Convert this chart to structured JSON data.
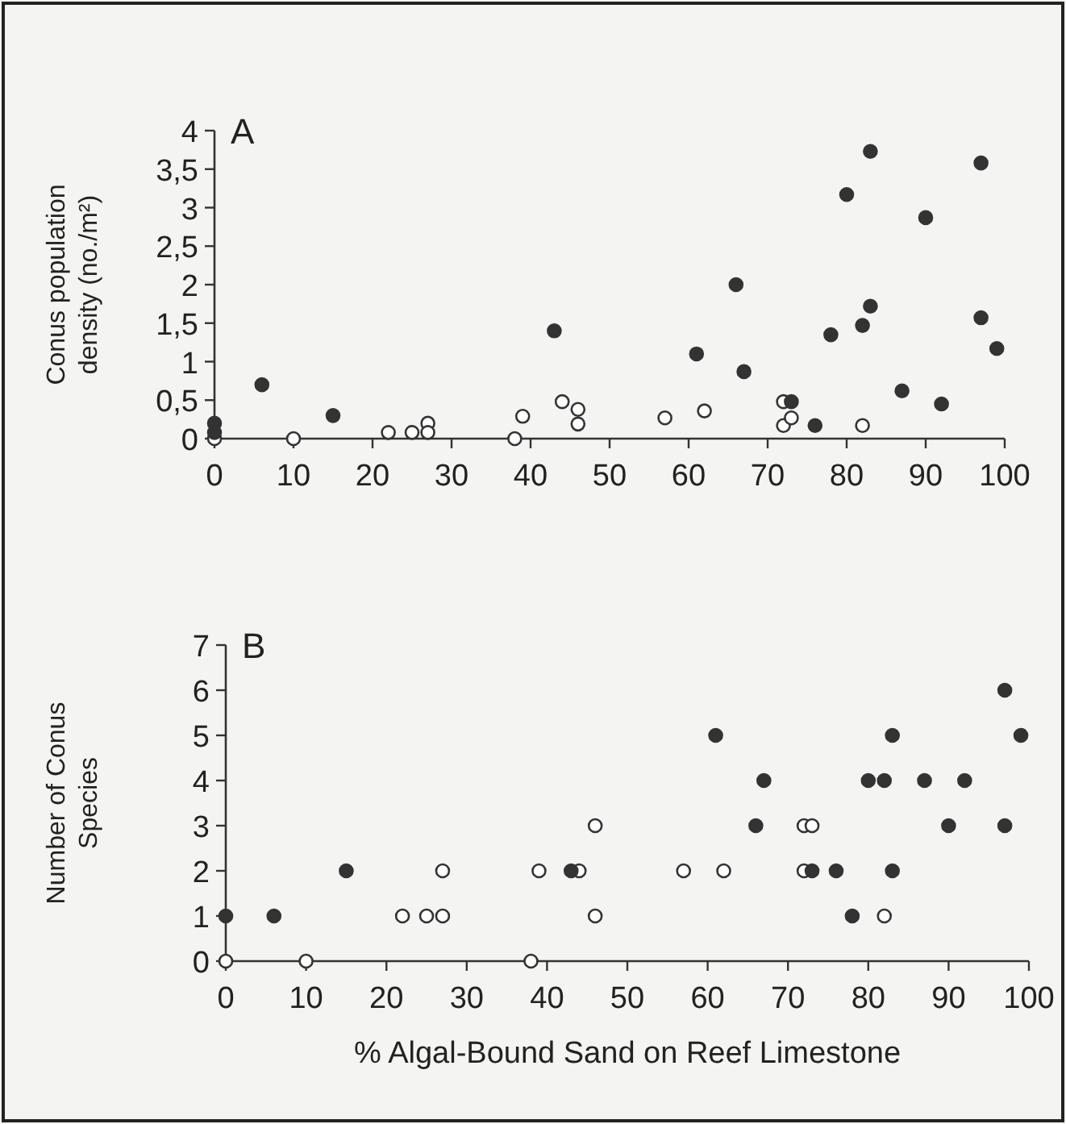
{
  "chart_data": [
    {
      "type": "scatter",
      "title": "A",
      "ylabel": "Conus population\ndensity (no./m²)",
      "xlim": [
        0,
        100
      ],
      "xticks": [
        0,
        10,
        20,
        30,
        40,
        50,
        60,
        70,
        80,
        90,
        100
      ],
      "ylim": [
        0,
        4
      ],
      "yticks": [
        0,
        {
          "value": 0.5,
          "label": "0,5"
        },
        1,
        {
          "value": 1.5,
          "label": "1,5"
        },
        2,
        {
          "value": 2.5,
          "label": "2,5"
        },
        3,
        {
          "value": 3.5,
          "label": "3,5"
        },
        4
      ],
      "marker": "circle",
      "grid": false,
      "series": [
        {
          "color": "#ffffff",
          "x": [
            0,
            10,
            22,
            25,
            27,
            27,
            38,
            39,
            44,
            46,
            46,
            57,
            62,
            72,
            72,
            73,
            82
          ],
          "values": [
            0,
            0,
            0.08,
            0.08,
            0.2,
            0.08,
            0,
            0.29,
            0.48,
            0.38,
            0.19,
            0.27,
            0.36,
            0.48,
            0.17,
            0.27,
            0.17
          ]
        },
        {
          "color": "#333333",
          "x": [
            0,
            0,
            6,
            15,
            43,
            61,
            66,
            67,
            73,
            76,
            78,
            80,
            82,
            83,
            83,
            87,
            90,
            92,
            97,
            97,
            99
          ],
          "values": [
            0.2,
            0.08,
            0.7,
            0.3,
            1.4,
            1.1,
            2,
            0.87,
            0.48,
            0.17,
            1.35,
            3.17,
            1.47,
            3.73,
            1.72,
            0.62,
            2.87,
            0.45,
            3.58,
            1.57,
            1.17
          ]
        }
      ]
    },
    {
      "type": "scatter",
      "title": "B",
      "ylabel": "Number of Conus\nSpecies",
      "xlabel": "% Algal-Bound Sand on Reef Limestone",
      "xlim": [
        0,
        100
      ],
      "xticks": [
        0,
        10,
        20,
        30,
        40,
        50,
        60,
        70,
        80,
        90,
        100
      ],
      "ylim": [
        0,
        7
      ],
      "yticks": [
        0,
        1,
        2,
        3,
        4,
        5,
        6,
        7
      ],
      "marker": "circle",
      "grid": false,
      "series": [
        {
          "color": "#ffffff",
          "x": [
            0,
            10,
            22,
            25,
            27,
            27,
            38,
            39,
            44,
            46,
            46,
            57,
            62,
            72,
            73,
            72,
            82
          ],
          "values": [
            0,
            0,
            1,
            1,
            1,
            2,
            0,
            2,
            2,
            3,
            1,
            2,
            2,
            3,
            3,
            2,
            1
          ]
        },
        {
          "color": "#333333",
          "x": [
            0,
            6,
            15,
            43,
            61,
            66,
            67,
            73,
            76,
            78,
            80,
            82,
            83,
            83,
            87,
            90,
            92,
            97,
            97,
            99
          ],
          "values": [
            1,
            1,
            2,
            2,
            5,
            3,
            4,
            2,
            2,
            1,
            4,
            4,
            5,
            2,
            4,
            3,
            4,
            6,
            3,
            5
          ]
        }
      ]
    }
  ]
}
